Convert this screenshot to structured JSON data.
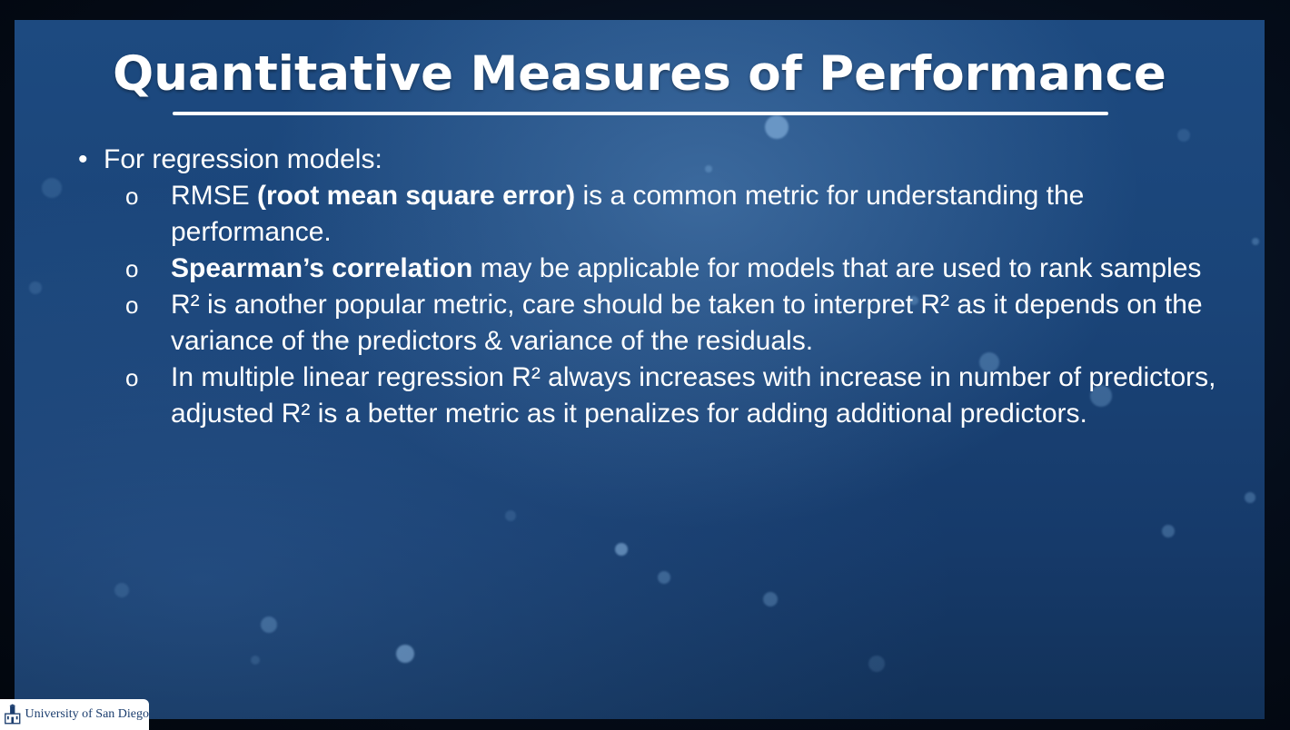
{
  "slide": {
    "title": "Quantitative Measures of Performance",
    "bullet_marker": "•",
    "sub_marker": "o",
    "bullet": {
      "label": "For regression models:"
    },
    "items": [
      {
        "pre": "RMSE ",
        "bold": "(root mean square error)",
        "post": " is a common metric for understanding the performance."
      },
      {
        "pre": "",
        "bold": "Spearman’s correlation",
        "post": " may be applicable for models that are used to rank samples"
      },
      {
        "pre": "R² is another popular metric, care should be taken to interpret R² as it depends on the variance of the predictors & variance of the residuals.",
        "bold": "",
        "post": ""
      },
      {
        "pre": "In multiple linear regression R² always increases with increase in number of predictors, adjusted R² is a better metric as it penalizes for adding additional predictors.",
        "bold": "",
        "post": ""
      }
    ]
  },
  "logo": {
    "text": "University of San Diego",
    "icon": "university-tower-icon"
  },
  "colors": {
    "background": "#1a4478",
    "text": "#ffffff",
    "logo_text": "#1b3d6e"
  }
}
